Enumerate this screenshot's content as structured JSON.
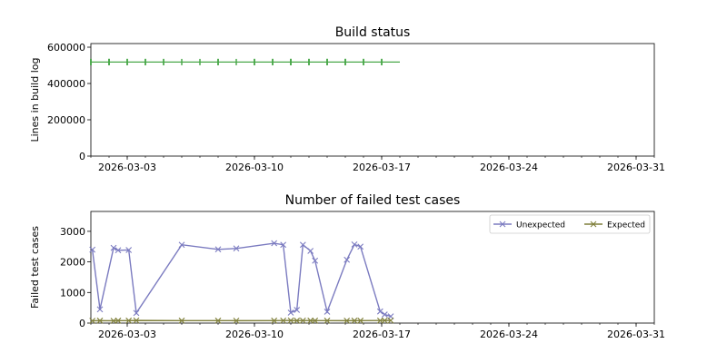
{
  "chart_data": [
    {
      "type": "scatter",
      "title": "Build status",
      "xlabel": "",
      "ylabel": "Lines in build log",
      "x_axis": "date",
      "xlim": [
        "2026-03-01",
        "2026-04-01"
      ],
      "ylim": [
        0,
        620000
      ],
      "xtick_labels": [
        "2026-03-03",
        "2026-03-10",
        "2026-03-17",
        "2026-03-24",
        "2026-03-31"
      ],
      "ytick_values": [
        0,
        200000,
        400000,
        600000
      ],
      "ytick_labels": [
        "0",
        "200000",
        "400000",
        "600000"
      ],
      "series": [
        {
          "color": "#4aa84a",
          "marker": "vertical-tick",
          "line": {
            "from": "2026-03-01",
            "to": "2026-03-18",
            "value": 518000
          },
          "x": [
            "2026-03-01",
            "2026-03-01",
            "2026-03-01",
            "2026-03-01",
            "2026-03-02",
            "2026-03-02",
            "2026-03-02",
            "2026-03-02",
            "2026-03-03",
            "2026-03-03",
            "2026-03-03",
            "2026-03-04",
            "2026-03-04",
            "2026-03-04",
            "2026-03-05",
            "2026-03-05",
            "2026-03-06",
            "2026-03-07",
            "2026-03-08",
            "2026-03-08",
            "2026-03-08",
            "2026-03-09",
            "2026-03-10",
            "2026-03-10",
            "2026-03-10",
            "2026-03-11",
            "2026-03-11",
            "2026-03-11",
            "2026-03-12",
            "2026-03-12",
            "2026-03-12",
            "2026-03-12",
            "2026-03-13",
            "2026-03-13",
            "2026-03-13",
            "2026-03-14",
            "2026-03-14",
            "2026-03-14",
            "2026-03-14",
            "2026-03-15",
            "2026-03-15",
            "2026-03-15",
            "2026-03-15",
            "2026-03-16",
            "2026-03-16",
            "2026-03-16",
            "2026-03-17",
            "2026-03-17",
            "2026-03-17"
          ],
          "values": [
            518000,
            518000,
            518000,
            518000,
            518000,
            518000,
            518000,
            518000,
            518000,
            518000,
            518000,
            518000,
            518000,
            518000,
            518000,
            518000,
            518000,
            518000,
            518000,
            518000,
            518000,
            518000,
            518000,
            518000,
            518000,
            518000,
            518000,
            518000,
            518000,
            518000,
            518000,
            518000,
            518000,
            518000,
            518000,
            518000,
            518000,
            518000,
            518000,
            518000,
            518000,
            518000,
            518000,
            518000,
            518000,
            518000,
            518000,
            518000,
            518000
          ]
        }
      ],
      "grid": false,
      "legend": false
    },
    {
      "type": "line",
      "title": "Number of failed test cases",
      "xlabel": "",
      "ylabel": "Failed test cases",
      "x_axis": "date",
      "xlim": [
        "2026-03-01",
        "2026-04-01"
      ],
      "ylim": [
        0,
        3650
      ],
      "xtick_labels": [
        "2026-03-03",
        "2026-03-10",
        "2026-03-17",
        "2026-03-24",
        "2026-03-31"
      ],
      "ytick_values": [
        0,
        1000,
        2000,
        3000
      ],
      "ytick_labels": [
        "0",
        "1000",
        "2000",
        "3000"
      ],
      "legend": "top-right",
      "grid": false,
      "series": [
        {
          "name": "Unexpected",
          "color": "#7b7bc0",
          "marker": "x",
          "x": [
            "2026-03-01 02:00",
            "2026-03-01 12:00",
            "2026-03-02 06:00",
            "2026-03-02 12:00",
            "2026-03-03 02:00",
            "2026-03-03 12:00",
            "2026-03-06 00:00",
            "2026-03-08 00:00",
            "2026-03-09 00:00",
            "2026-03-11 02:00",
            "2026-03-11 14:00",
            "2026-03-12 00:00",
            "2026-03-12 08:00",
            "2026-03-12 16:00",
            "2026-03-13 02:00",
            "2026-03-13 08:00",
            "2026-03-14 00:00",
            "2026-03-15 02:00",
            "2026-03-15 12:00",
            "2026-03-15 20:00",
            "2026-03-16 22:00",
            "2026-03-17 04:00",
            "2026-03-17 12:00"
          ],
          "values": [
            2400,
            450,
            2460,
            2380,
            2390,
            330,
            2560,
            2410,
            2440,
            2610,
            2560,
            340,
            430,
            2560,
            2360,
            2040,
            370,
            2070,
            2570,
            2500,
            380,
            280,
            220
          ]
        },
        {
          "name": "Expected",
          "color": "#7f7f3a",
          "marker": "x",
          "x": [
            "2026-03-01 02:00",
            "2026-03-01 12:00",
            "2026-03-02 06:00",
            "2026-03-02 12:00",
            "2026-03-03 02:00",
            "2026-03-03 12:00",
            "2026-03-06 00:00",
            "2026-03-08 00:00",
            "2026-03-09 00:00",
            "2026-03-11 02:00",
            "2026-03-11 14:00",
            "2026-03-12 00:00",
            "2026-03-12 08:00",
            "2026-03-12 16:00",
            "2026-03-13 02:00",
            "2026-03-13 08:00",
            "2026-03-14 00:00",
            "2026-03-15 02:00",
            "2026-03-15 12:00",
            "2026-03-15 20:00",
            "2026-03-16 22:00",
            "2026-03-17 04:00",
            "2026-03-17 12:00"
          ],
          "values": [
            75,
            80,
            75,
            80,
            80,
            85,
            80,
            80,
            78,
            80,
            82,
            85,
            80,
            82,
            80,
            80,
            80,
            78,
            80,
            80,
            82,
            85,
            85
          ]
        }
      ]
    }
  ]
}
